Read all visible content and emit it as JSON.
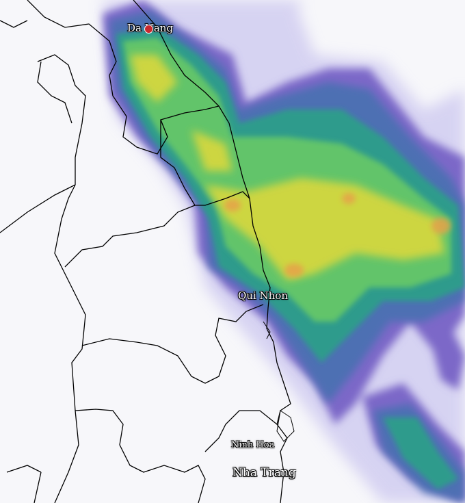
{
  "map": {
    "type": "weather-radar",
    "cities": [
      {
        "name": "Da Nang",
        "marker": true
      },
      {
        "name": "Qui Nhon",
        "marker": false
      },
      {
        "name": "Ninh Hoa",
        "marker": false
      },
      {
        "name": "Nha Trang",
        "marker": false
      }
    ],
    "colors": {
      "background": "#f7f7fa",
      "light": "#c9c4ef",
      "purple": "#7b68c8",
      "blue": "#4d6fb3",
      "teal": "#2f9b8c",
      "green": "#62c46a",
      "yellow": "#d9d83c",
      "orange": "#e6a24a",
      "marker": "#c8282d"
    }
  }
}
